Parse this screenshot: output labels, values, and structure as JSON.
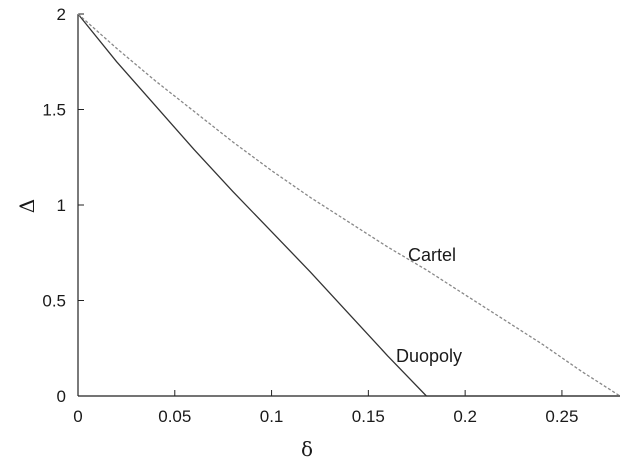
{
  "chart_data": {
    "type": "line",
    "xlabel": "δ",
    "ylabel": "Δ",
    "xlim": [
      0,
      0.28
    ],
    "ylim": [
      0,
      2
    ],
    "xticks": [
      {
        "value": 0,
        "label": "0"
      },
      {
        "value": 0.05,
        "label": "0.05"
      },
      {
        "value": 0.1,
        "label": "0.1"
      },
      {
        "value": 0.15,
        "label": "0.15"
      },
      {
        "value": 0.2,
        "label": "0.2"
      },
      {
        "value": 0.25,
        "label": "0.25"
      }
    ],
    "yticks": [
      {
        "value": 0,
        "label": "0"
      },
      {
        "value": 0.5,
        "label": "0.5"
      },
      {
        "value": 1,
        "label": "1"
      },
      {
        "value": 1.5,
        "label": "1.5"
      },
      {
        "value": 2,
        "label": "2"
      }
    ],
    "grid": false,
    "series": [
      {
        "name": "Duopoly",
        "color": "#333333",
        "dash": "solid",
        "x": [
          0,
          0.02,
          0.04,
          0.06,
          0.08,
          0.1,
          0.12,
          0.14,
          0.16,
          0.18,
          0.2,
          0.22,
          0.24,
          0.26,
          0.28
        ],
        "y": [
          2.0,
          1.75,
          1.52,
          1.29,
          1.07,
          0.86,
          0.65,
          0.43,
          0.21,
          0.0,
          0.0,
          0.0,
          0.0,
          0.0,
          0.0
        ]
      },
      {
        "name": "Cartel",
        "color": "#888888",
        "dash": "dashed",
        "x": [
          0,
          0.02,
          0.04,
          0.06,
          0.08,
          0.1,
          0.12,
          0.14,
          0.16,
          0.18,
          0.2,
          0.22,
          0.24,
          0.26,
          0.28
        ],
        "y": [
          2.0,
          1.82,
          1.65,
          1.49,
          1.33,
          1.18,
          1.04,
          0.91,
          0.78,
          0.66,
          0.53,
          0.4,
          0.27,
          0.13,
          0.0
        ]
      }
    ]
  }
}
